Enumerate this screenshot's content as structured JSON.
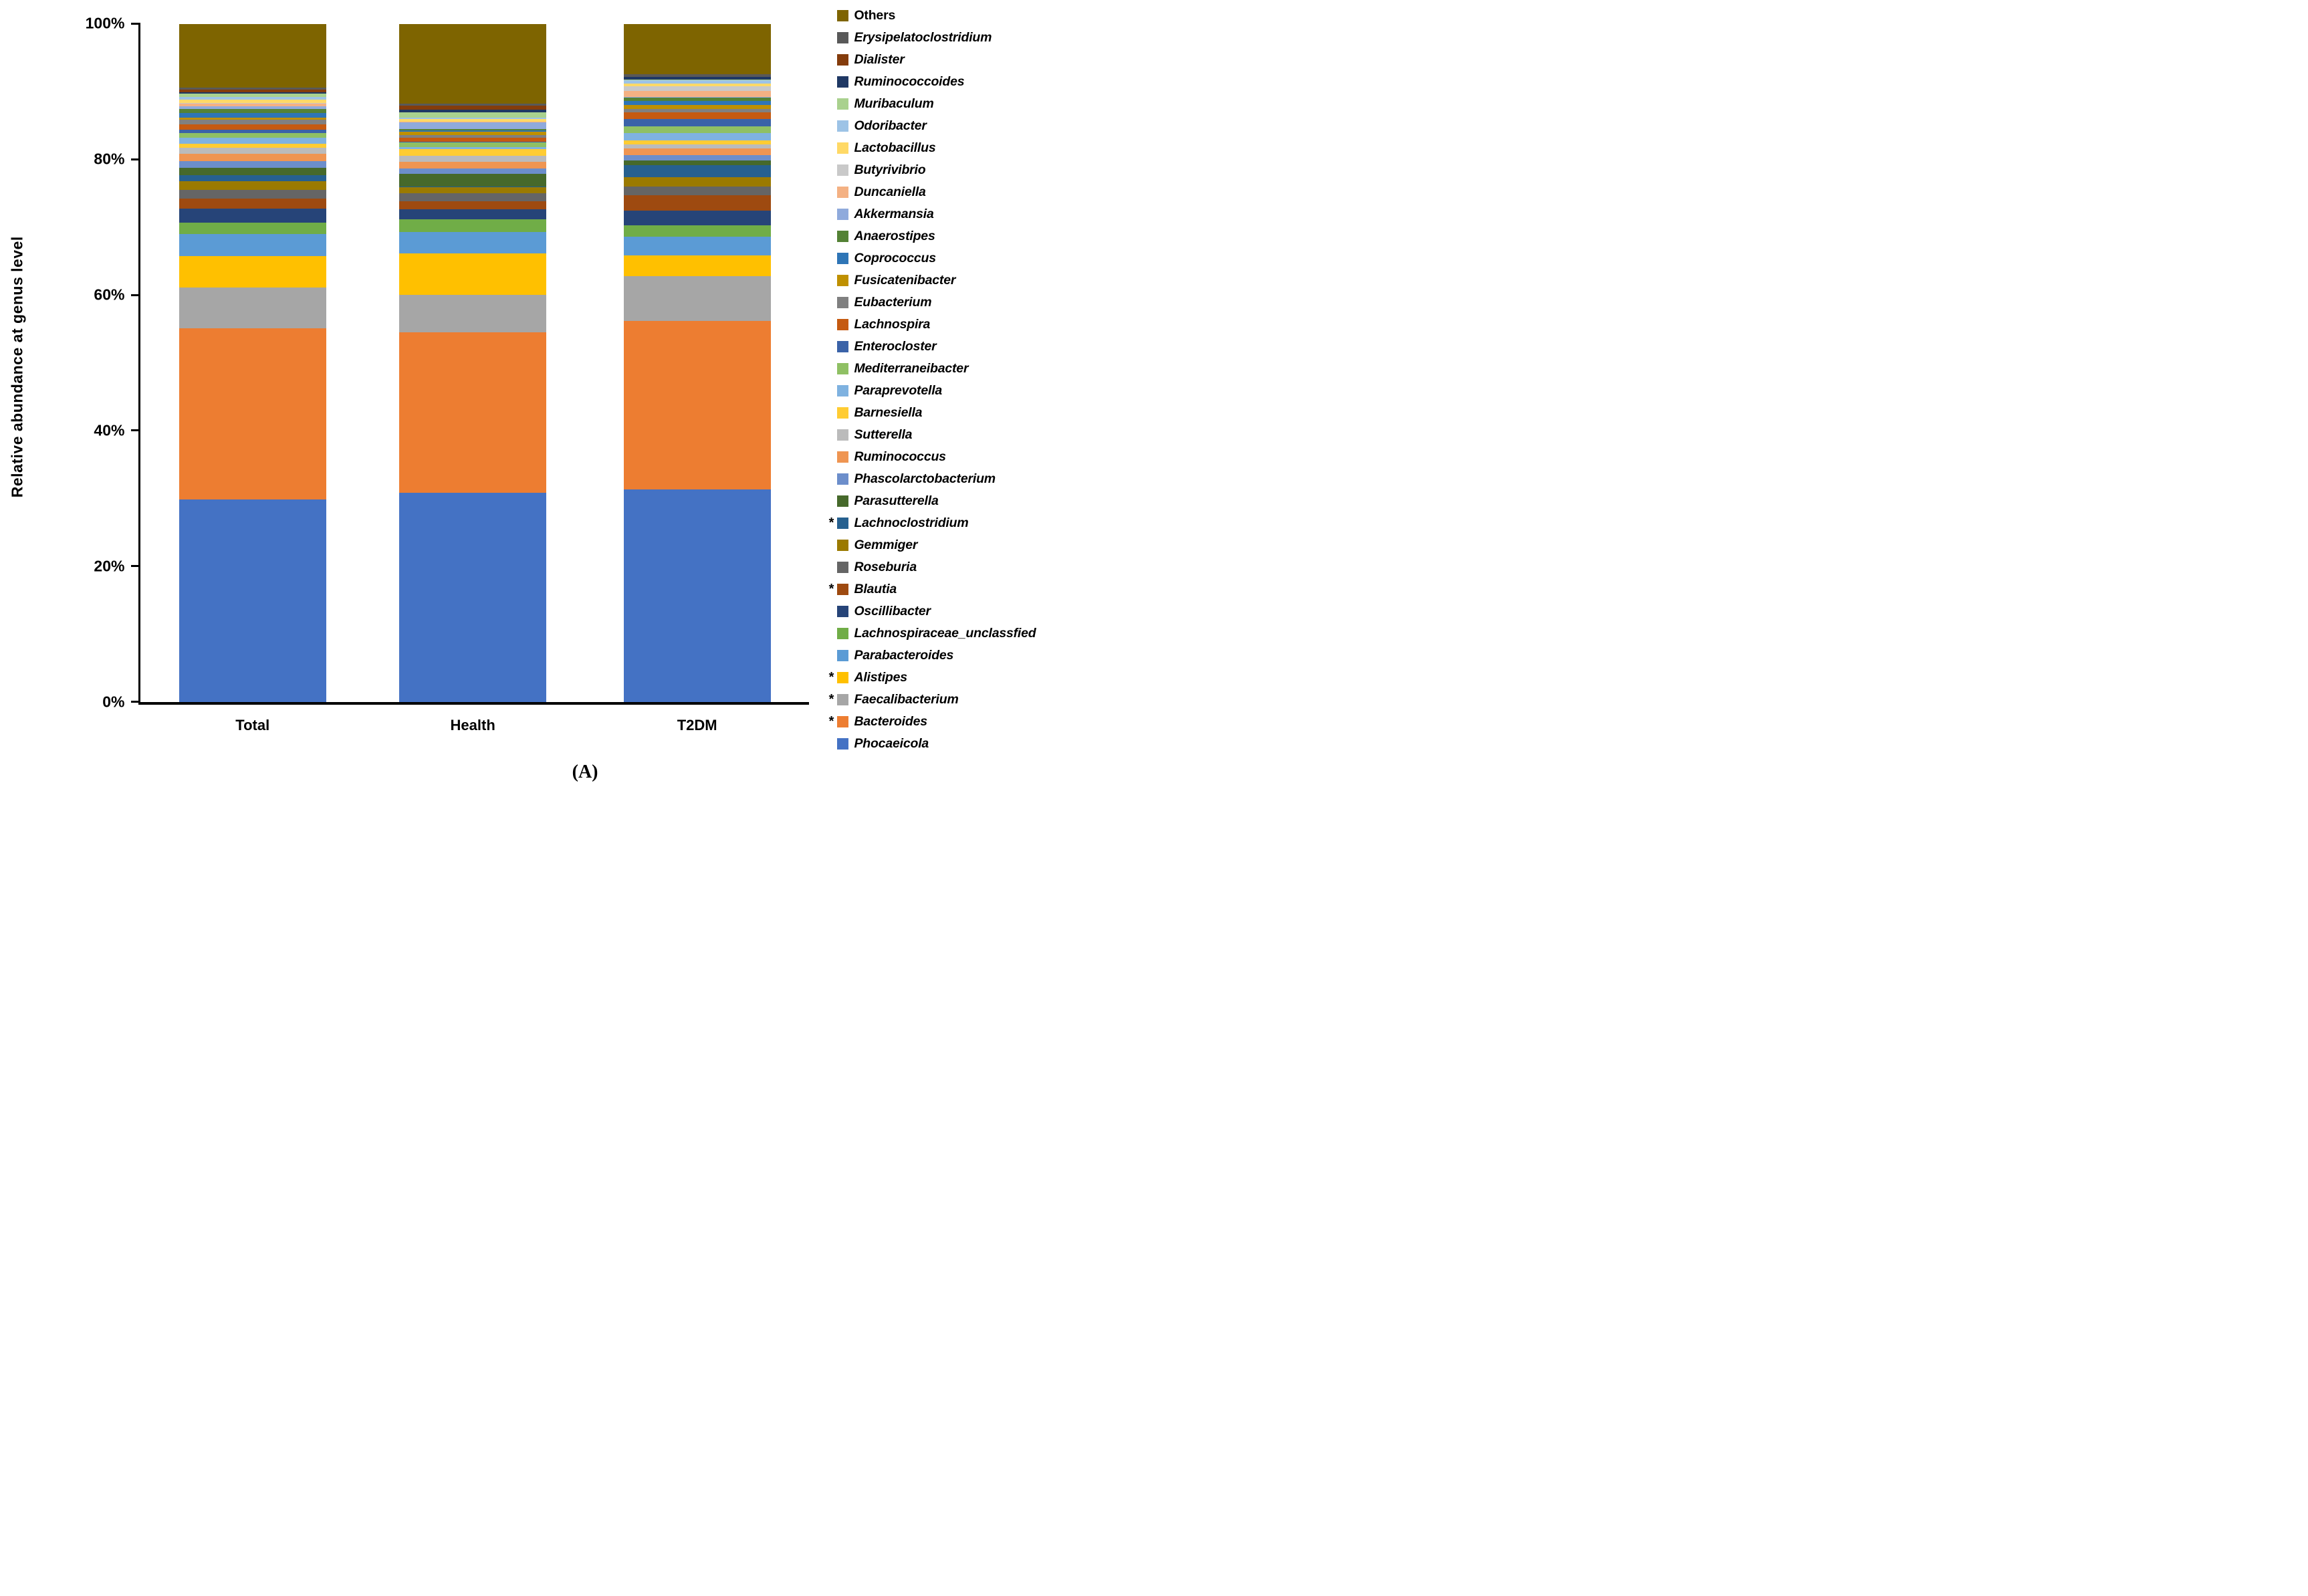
{
  "figure": {
    "caption": "(A)"
  },
  "y_axis": {
    "title": "Relative abundance at genus level",
    "ticks": [
      {
        "label": "0%",
        "value": 0
      },
      {
        "label": "20%",
        "value": 20
      },
      {
        "label": "40%",
        "value": 40
      },
      {
        "label": "60%",
        "value": 60
      },
      {
        "label": "80%",
        "value": 80
      },
      {
        "label": "100%",
        "value": 100
      }
    ],
    "min": 0,
    "max": 100,
    "grid": false
  },
  "chart_data": {
    "type": "bar",
    "stacked": true,
    "unit": "percent relative abundance",
    "title": "",
    "xlabel": "",
    "ylabel": "Relative abundance at genus level",
    "ylim": [
      0,
      100
    ],
    "legend_position": "right",
    "legend_order": "reverse of stacking (top legend entry = top bar segment)",
    "categories": [
      "Total",
      "Health",
      "T2DM"
    ],
    "layout": {
      "bar_lefts_pct": [
        5.74,
        38.7,
        72.27
      ],
      "bar_width_pct": 22.0,
      "x_label_centers_pct": [
        16.74,
        49.7,
        83.27
      ]
    },
    "series": [
      {
        "name": "Phocaeicola",
        "color": "#4472C4",
        "starred": false,
        "italic": true,
        "values": [
          29.8,
          30.8,
          31.3
        ]
      },
      {
        "name": "Bacteroides",
        "color": "#ED7D31",
        "starred": true,
        "italic": true,
        "values": [
          25.3,
          23.7,
          24.9
        ]
      },
      {
        "name": "Faecalibacterium",
        "color": "#A6A6A6",
        "starred": true,
        "italic": true,
        "values": [
          6.0,
          5.5,
          6.6
        ]
      },
      {
        "name": "Alistipes",
        "color": "#FFC000",
        "starred": true,
        "italic": true,
        "values": [
          4.6,
          6.1,
          3.0
        ]
      },
      {
        "name": "Parabacteroides",
        "color": "#5B9BD5",
        "starred": false,
        "italic": true,
        "values": [
          3.3,
          3.2,
          2.8
        ]
      },
      {
        "name": "Lachnospiraceae_unclassfied",
        "color": "#70AD47",
        "starred": false,
        "italic": true,
        "values": [
          1.7,
          1.9,
          1.7
        ]
      },
      {
        "name": "Oscillibacter",
        "color": "#264478",
        "starred": false,
        "italic": true,
        "values": [
          2.0,
          1.4,
          2.1
        ]
      },
      {
        "name": "Blautia",
        "color": "#9E4A10",
        "starred": true,
        "italic": true,
        "values": [
          1.5,
          1.2,
          2.35
        ]
      },
      {
        "name": "Roseburia",
        "color": "#656565",
        "starred": false,
        "italic": true,
        "values": [
          1.3,
          1.2,
          1.26
        ]
      },
      {
        "name": "Gemmiger",
        "color": "#9B7A00",
        "starred": false,
        "italic": true,
        "values": [
          1.3,
          0.9,
          1.36
        ]
      },
      {
        "name": "Lachnoclostridium",
        "color": "#26608F",
        "starred": true,
        "italic": true,
        "values": [
          0.9,
          0.1,
          1.8
        ]
      },
      {
        "name": "Parasutterella",
        "color": "#46692B",
        "starred": false,
        "italic": true,
        "values": [
          1.1,
          1.87,
          0.62
        ]
      },
      {
        "name": "Phascolarctobacterium",
        "color": "#6C8ECB",
        "starred": false,
        "italic": true,
        "values": [
          0.9,
          0.82,
          0.82
        ]
      },
      {
        "name": "Ruminococcus",
        "color": "#EF9552",
        "starred": false,
        "italic": true,
        "values": [
          1.1,
          0.98,
          1.01
        ]
      },
      {
        "name": "Sutterella",
        "color": "#BBBBBB",
        "starred": false,
        "italic": true,
        "values": [
          0.9,
          0.9,
          0.57
        ]
      },
      {
        "name": "Barnesiella",
        "color": "#FFCC33",
        "starred": false,
        "italic": true,
        "values": [
          0.6,
          0.9,
          0.65
        ]
      },
      {
        "name": "Paraprevotella",
        "color": "#7FB2E0",
        "starred": false,
        "italic": true,
        "values": [
          0.9,
          0.33,
          1.06
        ]
      },
      {
        "name": "Mediterraneibacter",
        "color": "#8FC064",
        "starred": false,
        "italic": true,
        "values": [
          0.7,
          0.74,
          0.95
        ]
      },
      {
        "name": "Enterocloster",
        "color": "#3A62A8",
        "starred": false,
        "italic": true,
        "values": [
          0.5,
          0.1,
          1.1
        ]
      },
      {
        "name": "Lachnospira",
        "color": "#C55A11",
        "starred": false,
        "italic": true,
        "values": [
          0.8,
          0.55,
          0.98
        ]
      },
      {
        "name": "Eubacterium",
        "color": "#808080",
        "starred": false,
        "italic": true,
        "values": [
          0.7,
          0.41,
          0.54
        ]
      },
      {
        "name": "Fusicatenibacter",
        "color": "#BF9000",
        "starred": false,
        "italic": true,
        "values": [
          0.3,
          0.44,
          0.56
        ]
      },
      {
        "name": "Coprococcus",
        "color": "#2E75B6",
        "starred": false,
        "italic": true,
        "values": [
          0.6,
          0.25,
          0.59
        ]
      },
      {
        "name": "Anaerostipes",
        "color": "#548235",
        "starred": false,
        "italic": true,
        "values": [
          0.6,
          0.21,
          0.48
        ]
      },
      {
        "name": "Akkermansia",
        "color": "#8FAADC",
        "starred": false,
        "italic": true,
        "values": [
          0.4,
          0.95,
          0.1
        ]
      },
      {
        "name": "Duncaniella",
        "color": "#F4B183",
        "starred": false,
        "italic": true,
        "values": [
          0.4,
          0.1,
          0.95
        ]
      },
      {
        "name": "Butyrivibrio",
        "color": "#C9C9C9",
        "starred": false,
        "italic": true,
        "values": [
          0.15,
          0.05,
          0.61
        ]
      },
      {
        "name": "Lactobacillus",
        "color": "#FFD966",
        "starred": false,
        "italic": true,
        "values": [
          0.45,
          0.41,
          0.46
        ]
      },
      {
        "name": "Odoribacter",
        "color": "#9DC3E6",
        "starred": false,
        "italic": true,
        "values": [
          0.45,
          0.17,
          0.47
        ]
      },
      {
        "name": "Muribaculum",
        "color": "#A9D18E",
        "starred": false,
        "italic": true,
        "values": [
          0.45,
          0.74,
          0.05
        ]
      },
      {
        "name": "Ruminococcoides",
        "color": "#1F3864",
        "starred": false,
        "italic": true,
        "values": [
          0.2,
          0.46,
          0.41
        ]
      },
      {
        "name": "Dialister",
        "color": "#843C0C",
        "starred": false,
        "italic": true,
        "values": [
          0.4,
          0.6,
          0.05
        ]
      },
      {
        "name": "Erysipelatoclostridium",
        "color": "#595959",
        "starred": false,
        "italic": true,
        "values": [
          0.26,
          0.25,
          0.41
        ]
      },
      {
        "name": "Others",
        "color": "#7E6400",
        "starred": false,
        "italic": false,
        "values": [
          9.44,
          11.77,
          7.39
        ]
      }
    ]
  }
}
